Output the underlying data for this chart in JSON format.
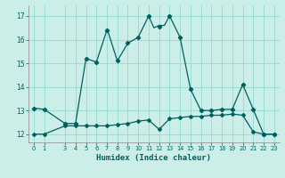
{
  "xlabel": "Humidex (Indice chaleur)",
  "bg_color": "#cceee8",
  "grid_color": "#99ddd5",
  "line_color": "#006060",
  "xlim": [
    -0.5,
    23.5
  ],
  "ylim": [
    11.65,
    17.45
  ],
  "yticks": [
    12,
    13,
    14,
    15,
    16,
    17
  ],
  "xticks": [
    0,
    1,
    3,
    4,
    5,
    6,
    7,
    8,
    9,
    10,
    11,
    12,
    13,
    14,
    15,
    16,
    17,
    18,
    19,
    20,
    21,
    22,
    23
  ],
  "curve1_x": [
    0,
    1,
    3,
    4,
    5,
    6,
    7,
    7.1,
    8,
    9,
    10,
    11,
    11.5,
    12,
    12.5,
    13,
    14,
    15,
    16,
    17,
    18,
    19,
    20,
    21,
    22,
    23
  ],
  "curve1_y": [
    13.1,
    13.05,
    12.45,
    12.45,
    15.2,
    15.05,
    16.4,
    16.35,
    15.1,
    15.85,
    16.1,
    17.0,
    16.5,
    16.6,
    16.6,
    17.0,
    16.1,
    13.9,
    13.0,
    13.0,
    13.05,
    13.05,
    14.1,
    13.05,
    12.0,
    12.0
  ],
  "curve1_markers_x": [
    0,
    1,
    3,
    4,
    5,
    6,
    7,
    8,
    9,
    10,
    11,
    12,
    13,
    14,
    15,
    16,
    17,
    18,
    19,
    20,
    21,
    22,
    23
  ],
  "curve1_markers_y": [
    13.1,
    13.05,
    12.45,
    12.45,
    15.2,
    15.05,
    16.4,
    15.1,
    15.85,
    16.1,
    17.0,
    16.55,
    17.0,
    16.1,
    13.9,
    13.0,
    13.0,
    13.05,
    13.05,
    14.1,
    13.05,
    12.0,
    12.0
  ],
  "curve2_x": [
    0,
    1,
    3,
    4,
    5,
    6,
    7,
    8,
    9,
    10,
    11,
    12,
    13,
    14,
    15,
    16,
    17,
    18,
    19,
    20,
    21,
    22,
    23
  ],
  "curve2_y": [
    12.0,
    12.0,
    12.35,
    12.35,
    12.35,
    12.35,
    12.35,
    12.4,
    12.45,
    12.55,
    12.6,
    12.2,
    12.65,
    12.7,
    12.75,
    12.75,
    12.8,
    12.8,
    12.85,
    12.8,
    12.1,
    12.0,
    12.0
  ]
}
